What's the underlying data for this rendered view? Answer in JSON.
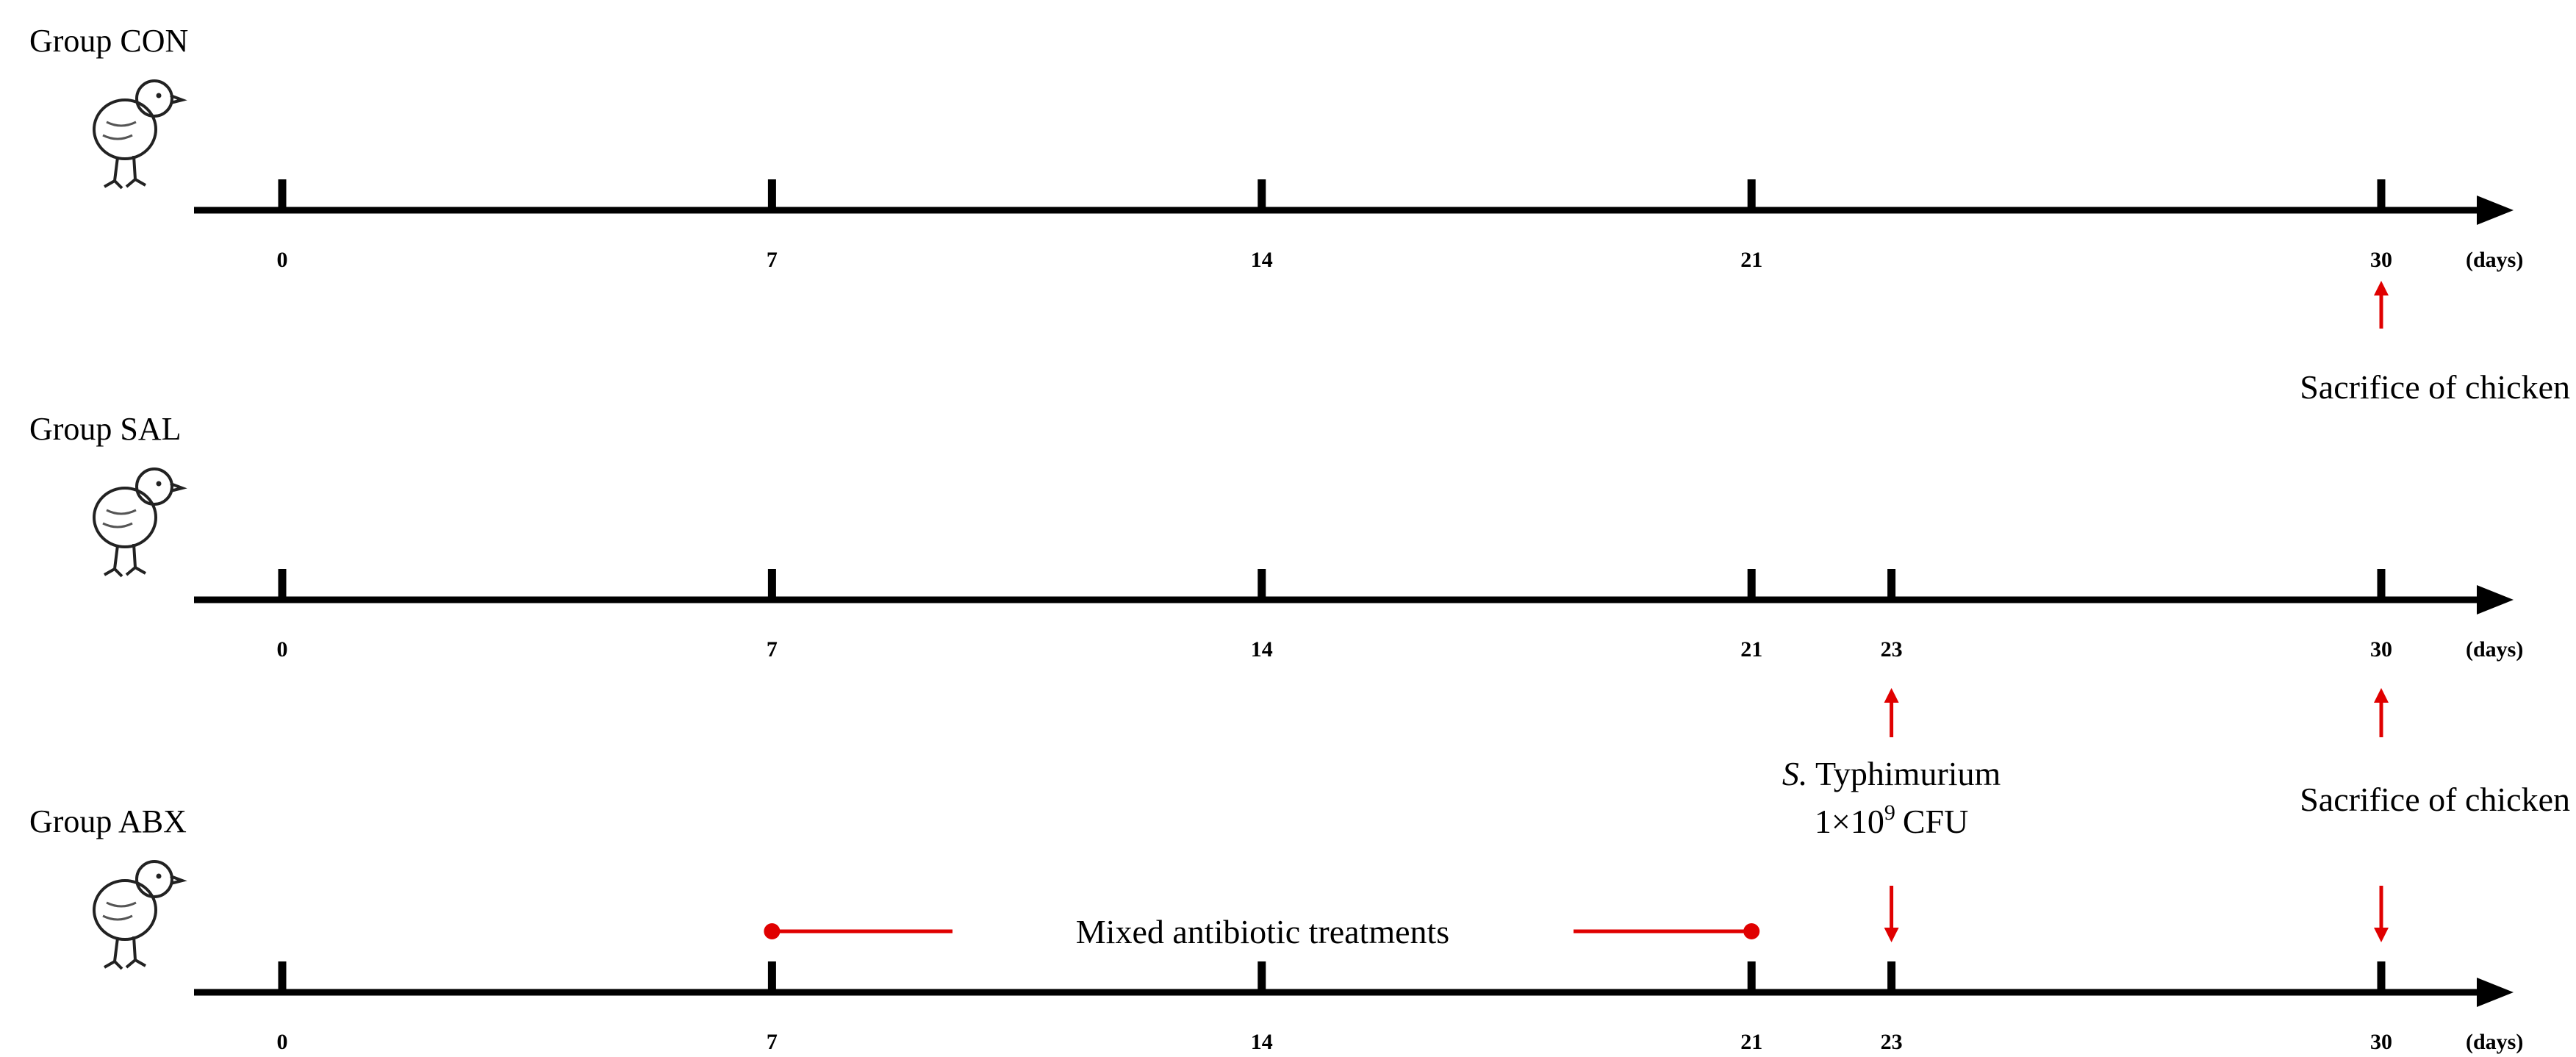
{
  "groups": [
    {
      "label": "Group CON",
      "ticks": [
        0,
        7,
        14,
        21,
        30
      ],
      "unit": "(days)"
    },
    {
      "label": "Group SAL",
      "ticks": [
        0,
        7,
        14,
        21,
        23,
        30
      ],
      "unit": "(days)"
    },
    {
      "label": "Group ABX",
      "ticks": [
        0,
        7,
        14,
        21,
        23,
        30
      ],
      "unit": "(days)"
    }
  ],
  "annotations": {
    "con_sacrifice": "Sacrifice of chicken",
    "sal_sacrifice": "Sacrifice of chicken",
    "infection": {
      "species_abbr": "S.",
      "species": "Typhimurium",
      "dose_base": "1×10",
      "dose_exponent": "9",
      "dose_unit": "CFU"
    },
    "treatment": "Mixed antibiotic treatments"
  }
}
